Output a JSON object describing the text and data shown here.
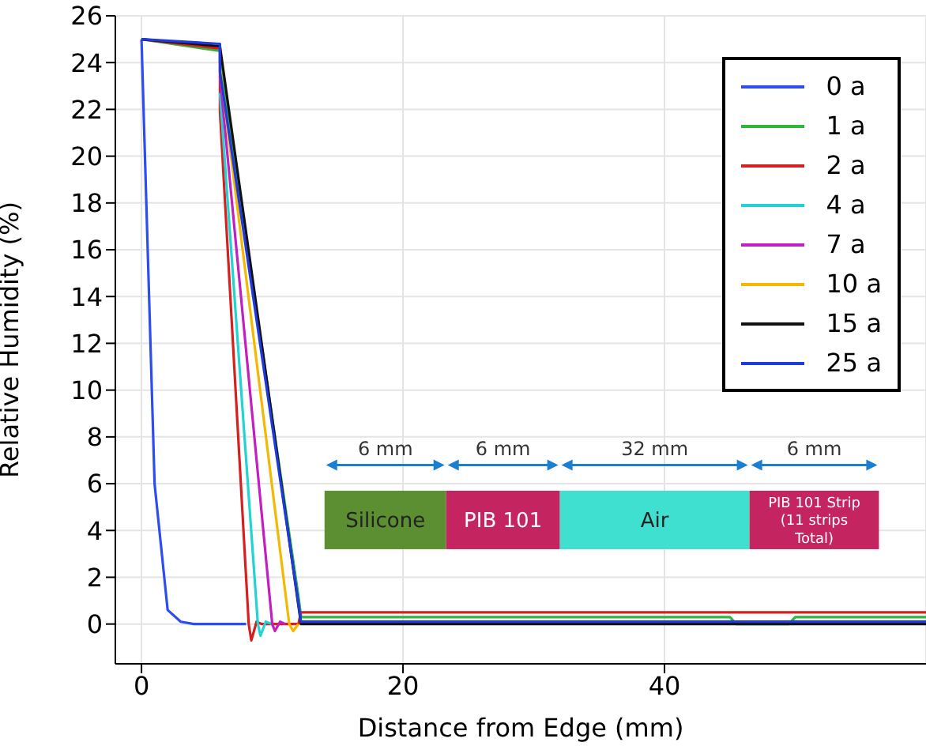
{
  "chart_data": {
    "type": "line",
    "xlabel": "Distance from Edge (mm)",
    "ylabel": "Relative Humidity (%)",
    "xlim": [
      -2,
      60
    ],
    "ylim": [
      -1.7,
      26
    ],
    "xticks": [
      0,
      20,
      40
    ],
    "yticks": [
      0,
      2,
      4,
      6,
      8,
      10,
      12,
      14,
      16,
      18,
      20,
      22,
      24,
      26
    ],
    "grid": true,
    "legend": "top right",
    "marker": "none",
    "line_style": "solid",
    "annotations": [
      "6 mm",
      "6 mm",
      "32 mm",
      "6 mm",
      "Silicone",
      "PIB 101",
      "Air",
      "PIB 101 Strip (11 strips Total)"
    ],
    "series": [
      {
        "name": "0 a",
        "color": "#2e4df0",
        "x": [
          0,
          1,
          2,
          3,
          4,
          6,
          8
        ],
        "values": [
          25,
          6,
          0.6,
          0.1,
          0,
          0,
          0
        ]
      },
      {
        "name": "1 a",
        "color": "#2db83d",
        "x": [
          0,
          6,
          6,
          12,
          12.2,
          45,
          45.5,
          49.5,
          50,
          60
        ],
        "values": [
          25,
          24.5,
          24.0,
          1.2,
          0.3,
          0.3,
          0,
          0,
          0.3,
          0.3
        ]
      },
      {
        "name": "2 a",
        "color": "#d62020",
        "x": [
          0,
          6,
          6,
          8.2,
          8.4,
          8.8,
          9.2,
          12,
          12.2,
          45,
          50,
          60
        ],
        "values": [
          25,
          24.6,
          21.9,
          0,
          -0.7,
          0.1,
          0,
          0,
          0.5,
          0.5,
          0.5,
          0.5
        ]
      },
      {
        "name": "4 a",
        "color": "#22d3d3",
        "x": [
          6,
          8.9,
          9.1,
          9.5,
          10
        ],
        "values": [
          22.7,
          0,
          -0.5,
          0.1,
          0
        ]
      },
      {
        "name": "7 a",
        "color": "#c21fc2",
        "x": [
          6,
          10,
          10.2,
          10.6,
          11
        ],
        "values": [
          23.4,
          0,
          -0.3,
          0.1,
          0
        ]
      },
      {
        "name": "10 a",
        "color": "#f5b800",
        "x": [
          6,
          11.3,
          11.6,
          12
        ],
        "values": [
          23.8,
          0,
          -0.3,
          0
        ]
      },
      {
        "name": "15 a",
        "color": "#111111",
        "x": [
          0,
          6,
          12.2,
          60
        ],
        "values": [
          25,
          24.7,
          0,
          0
        ]
      },
      {
        "name": "25 a",
        "color": "#1f3ae0",
        "x": [
          0,
          6,
          6,
          12,
          12.2,
          60
        ],
        "values": [
          25,
          24.8,
          23.6,
          0.9,
          0.1,
          0.1
        ]
      }
    ]
  }
}
